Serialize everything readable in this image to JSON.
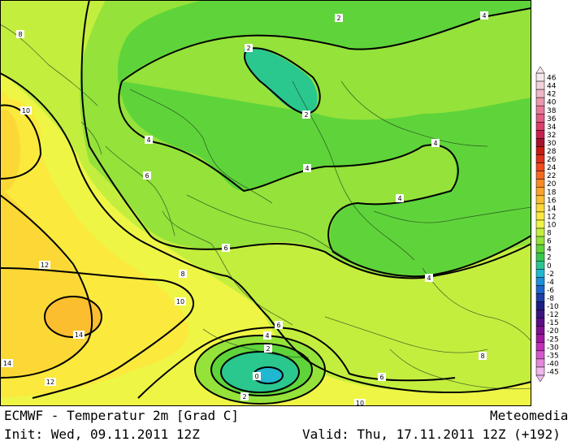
{
  "footer": {
    "model_title": "ECMWF - Temperatur 2m [Grad C]",
    "brand": "Meteomedia",
    "init": "Init: Wed, 09.11.2011 12Z",
    "valid": "Valid: Thu, 17.11.2011 12Z (+192)"
  },
  "legend": {
    "levels": [
      {
        "label": "46",
        "color": "#f7e8ee"
      },
      {
        "label": "44",
        "color": "#f3d2dc"
      },
      {
        "label": "42",
        "color": "#efb7c6"
      },
      {
        "label": "40",
        "color": "#eb98ae"
      },
      {
        "label": "38",
        "color": "#e77a98"
      },
      {
        "label": "36",
        "color": "#e15c84"
      },
      {
        "label": "34",
        "color": "#d93e6e"
      },
      {
        "label": "32",
        "color": "#c8204e"
      },
      {
        "label": "30",
        "color": "#a8102c"
      },
      {
        "label": "28",
        "color": "#c81a10"
      },
      {
        "label": "26",
        "color": "#e0301a"
      },
      {
        "label": "24",
        "color": "#f04a1e"
      },
      {
        "label": "22",
        "color": "#f66a20"
      },
      {
        "label": "20",
        "color": "#f88a24"
      },
      {
        "label": "18",
        "color": "#f9a42a"
      },
      {
        "label": "16",
        "color": "#fbbe2e"
      },
      {
        "label": "14",
        "color": "#fcd836"
      },
      {
        "label": "12",
        "color": "#fbe93e"
      },
      {
        "label": "10",
        "color": "#eff545"
      },
      {
        "label": "8",
        "color": "#c4ee3e"
      },
      {
        "label": "6",
        "color": "#95e23a"
      },
      {
        "label": "4",
        "color": "#5fd43a"
      },
      {
        "label": "2",
        "color": "#35c84e"
      },
      {
        "label": "0",
        "color": "#2ac78f"
      },
      {
        "label": "-2",
        "color": "#20b8d0"
      },
      {
        "label": "-4",
        "color": "#1d8fd8"
      },
      {
        "label": "-6",
        "color": "#1c66cc"
      },
      {
        "label": "-8",
        "color": "#1c3ea8"
      },
      {
        "label": "-10",
        "color": "#1a1e86"
      },
      {
        "label": "-12",
        "color": "#3a1480"
      },
      {
        "label": "-15",
        "color": "#5c0e86"
      },
      {
        "label": "-20",
        "color": "#80108e"
      },
      {
        "label": "-25",
        "color": "#a018a0"
      },
      {
        "label": "-30",
        "color": "#c030b8"
      },
      {
        "label": "-35",
        "color": "#d458cc"
      },
      {
        "label": "-40",
        "color": "#e488dc"
      },
      {
        "label": "-45",
        "color": "#f0b8ec"
      }
    ]
  },
  "map": {
    "contour_labels": [
      {
        "label": "2"
      },
      {
        "label": "4"
      },
      {
        "label": "2"
      },
      {
        "label": "2"
      },
      {
        "label": "4"
      },
      {
        "label": "4"
      },
      {
        "label": "4"
      },
      {
        "label": "4"
      },
      {
        "label": "6"
      },
      {
        "label": "6"
      },
      {
        "label": "8"
      },
      {
        "label": "10"
      },
      {
        "label": "10"
      },
      {
        "label": "12"
      },
      {
        "label": "14"
      },
      {
        "label": "14"
      },
      {
        "label": "12"
      },
      {
        "label": "4"
      },
      {
        "label": "6"
      },
      {
        "label": "2"
      },
      {
        "label": "0"
      },
      {
        "label": "2"
      },
      {
        "label": "6"
      },
      {
        "label": "8"
      },
      {
        "label": "10"
      },
      {
        "label": "4"
      },
      {
        "label": "8"
      }
    ]
  }
}
